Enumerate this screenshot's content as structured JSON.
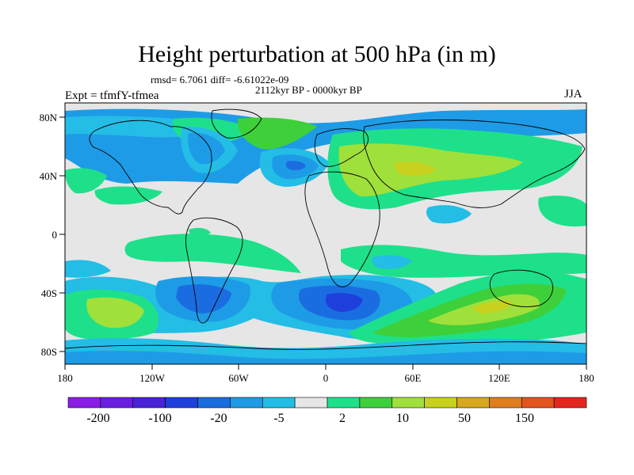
{
  "title": "Height perturbation at 500 hPa (in m)",
  "stats": "rmsd= 6.7061 diff= -6.61022e-09",
  "period": "2112kyr BP - 0000kyr BP",
  "experiment": "Expt = tfmfY-tfmea",
  "season": "JJA",
  "lat_ticks": [
    "80N",
    "40N",
    "0",
    "40S",
    "80S"
  ],
  "lon_ticks": [
    "180",
    "120W",
    "60W",
    "0",
    "60E",
    "120E",
    "180"
  ],
  "colorbar": {
    "labels": [
      "-200",
      "-100",
      "-20",
      "-5",
      "2",
      "10",
      "50",
      "150"
    ],
    "colors": [
      "#8a1ee6",
      "#6a1ee0",
      "#4a22d8",
      "#1f3fdc",
      "#1a6de0",
      "#1e9be6",
      "#23bde6",
      "#e6e6e6",
      "#1ee08a",
      "#3ed03a",
      "#a0e03a",
      "#c8d21e",
      "#d8a81e",
      "#e07d1e",
      "#e4541e",
      "#e4261e"
    ]
  },
  "colors": {
    "neutral": "#e6e6e6",
    "land_outline": "#000000"
  }
}
